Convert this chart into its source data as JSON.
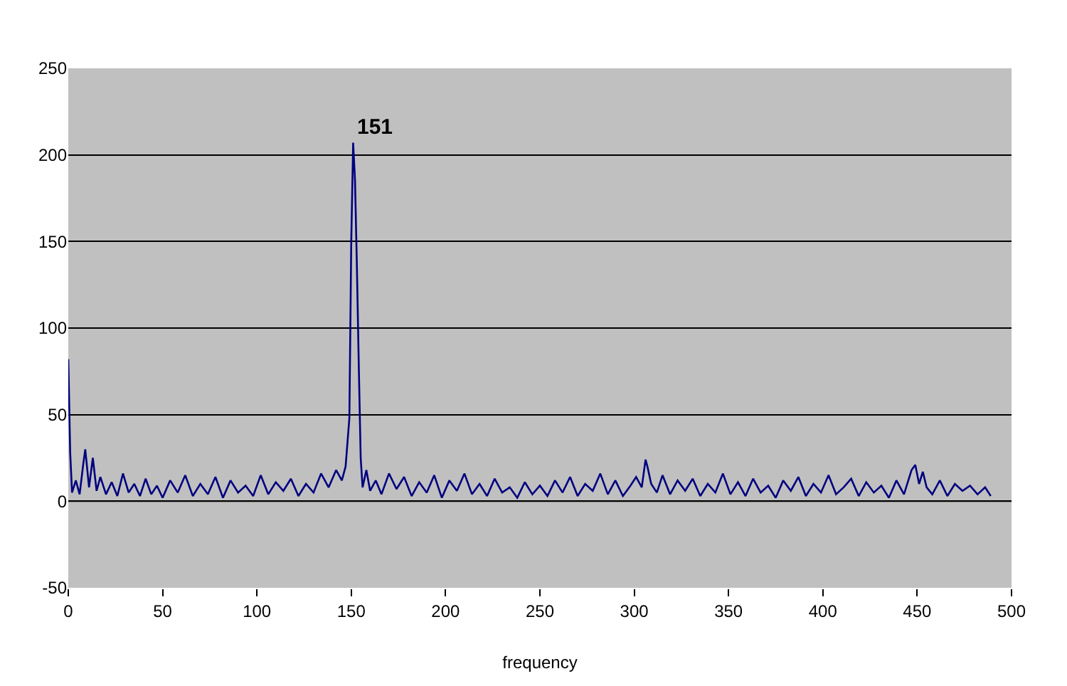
{
  "chart_data": {
    "type": "line",
    "xlabel": "frequency",
    "color": "#000080",
    "x": [
      0,
      1,
      2,
      4,
      6,
      8,
      9,
      11,
      13,
      15,
      17,
      20,
      23,
      26,
      29,
      32,
      35,
      38,
      41,
      44,
      47,
      50,
      54,
      58,
      62,
      66,
      70,
      74,
      78,
      82,
      86,
      90,
      94,
      98,
      102,
      106,
      110,
      114,
      118,
      122,
      126,
      130,
      134,
      138,
      142,
      145,
      147,
      149,
      150,
      151,
      152,
      153,
      154,
      155,
      156,
      158,
      160,
      163,
      166,
      170,
      174,
      178,
      182,
      186,
      190,
      194,
      198,
      202,
      206,
      210,
      214,
      218,
      222,
      226,
      230,
      234,
      238,
      242,
      246,
      250,
      254,
      258,
      262,
      266,
      270,
      274,
      278,
      282,
      286,
      290,
      294,
      298,
      301,
      304,
      306,
      307,
      309,
      312,
      315,
      319,
      323,
      327,
      331,
      335,
      339,
      343,
      347,
      351,
      355,
      359,
      363,
      367,
      371,
      375,
      379,
      383,
      387,
      391,
      395,
      399,
      403,
      407,
      411,
      415,
      419,
      423,
      427,
      431,
      435,
      439,
      443,
      447,
      449,
      451,
      453,
      455,
      458,
      462,
      466,
      470,
      474,
      478,
      482,
      486,
      489
    ],
    "values": [
      82,
      28,
      5,
      12,
      4,
      22,
      30,
      8,
      25,
      6,
      14,
      4,
      11,
      3,
      16,
      5,
      10,
      3,
      13,
      4,
      9,
      2,
      12,
      5,
      15,
      3,
      10,
      4,
      14,
      2,
      12,
      5,
      9,
      3,
      15,
      4,
      11,
      6,
      13,
      3,
      10,
      5,
      16,
      8,
      18,
      12,
      20,
      48,
      150,
      207,
      185,
      135,
      78,
      25,
      8,
      18,
      6,
      12,
      4,
      16,
      7,
      14,
      3,
      11,
      5,
      15,
      2,
      12,
      6,
      16,
      4,
      10,
      3,
      13,
      5,
      8,
      2,
      11,
      4,
      9,
      3,
      12,
      5,
      14,
      3,
      10,
      6,
      16,
      4,
      12,
      3,
      9,
      14,
      8,
      24,
      20,
      10,
      5,
      15,
      4,
      12,
      6,
      13,
      3,
      10,
      5,
      16,
      4,
      11,
      3,
      13,
      5,
      9,
      2,
      12,
      6,
      14,
      3,
      10,
      5,
      15,
      4,
      8,
      13,
      3,
      11,
      5,
      9,
      2,
      12,
      4,
      18,
      21,
      10,
      17,
      8,
      4,
      12,
      3,
      10,
      6,
      9,
      4,
      8,
      3
    ],
    "annotations": [
      {
        "text": "151",
        "x": 151,
        "y": 207
      }
    ],
    "xlim": [
      0,
      500
    ],
    "xticks": [
      0,
      50,
      100,
      150,
      200,
      250,
      300,
      350,
      400,
      450,
      500
    ],
    "ylim": [
      -50,
      250
    ],
    "yticks": [
      -50,
      0,
      50,
      100,
      150,
      200,
      250
    ],
    "grid": "y",
    "marker": "none",
    "line_style": "solid"
  }
}
